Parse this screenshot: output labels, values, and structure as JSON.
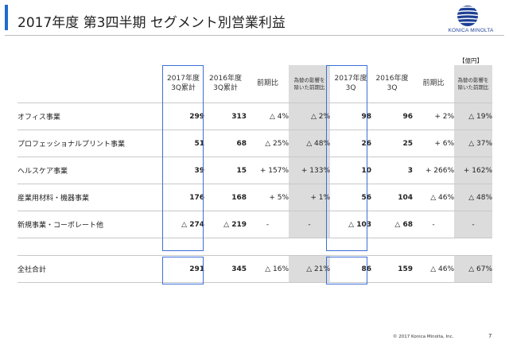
{
  "title": "2017年度 第3四半期 セグメント別営業利益",
  "logo": {
    "text": "KONICA MINOLTA",
    "brand_color": "#1c3f94"
  },
  "accent_color": "#1f6bd1",
  "highlight_color": "#3c6fd6",
  "unit": "【億円】",
  "headers": [
    "2017年度\n3Q累計",
    "2016年度\n3Q累計",
    "前期比",
    "為替の影響を\n除いた前期比",
    "2017年度\n3Q",
    "2016年度\n3Q",
    "前期比",
    "為替の影響を\n除いた前期比"
  ],
  "rows": [
    {
      "label": "オフィス事業",
      "values": [
        "299",
        "313",
        "△ 4%",
        "△ 2%",
        "98",
        "96",
        "+ 2%",
        "△ 19%"
      ]
    },
    {
      "label": "プロフェッショナルプリント事業",
      "values": [
        "51",
        "68",
        "△ 25%",
        "△ 48%",
        "26",
        "25",
        "+ 6%",
        "△ 37%"
      ]
    },
    {
      "label": "ヘルスケア事業",
      "values": [
        "39",
        "15",
        "+ 157%",
        "+ 133%",
        "10",
        "3",
        "+ 266%",
        "+ 162%"
      ]
    },
    {
      "label": "産業用材料・機器事業",
      "values": [
        "176",
        "168",
        "+ 5%",
        "+ 1%",
        "56",
        "104",
        "△ 46%",
        "△ 48%"
      ]
    },
    {
      "label": "新規事業・コーポレート他",
      "values": [
        "△ 274",
        "△ 219",
        "-",
        "-",
        "△ 103",
        "△ 68",
        "-",
        "-"
      ]
    }
  ],
  "total": {
    "label": "全社合計",
    "values": [
      "291",
      "345",
      "△ 16%",
      "△ 21%",
      "86",
      "159",
      "△ 46%",
      "△ 67%"
    ]
  },
  "footer": "© 2017 Konica Minolta, Inc.",
  "page_number": "7"
}
